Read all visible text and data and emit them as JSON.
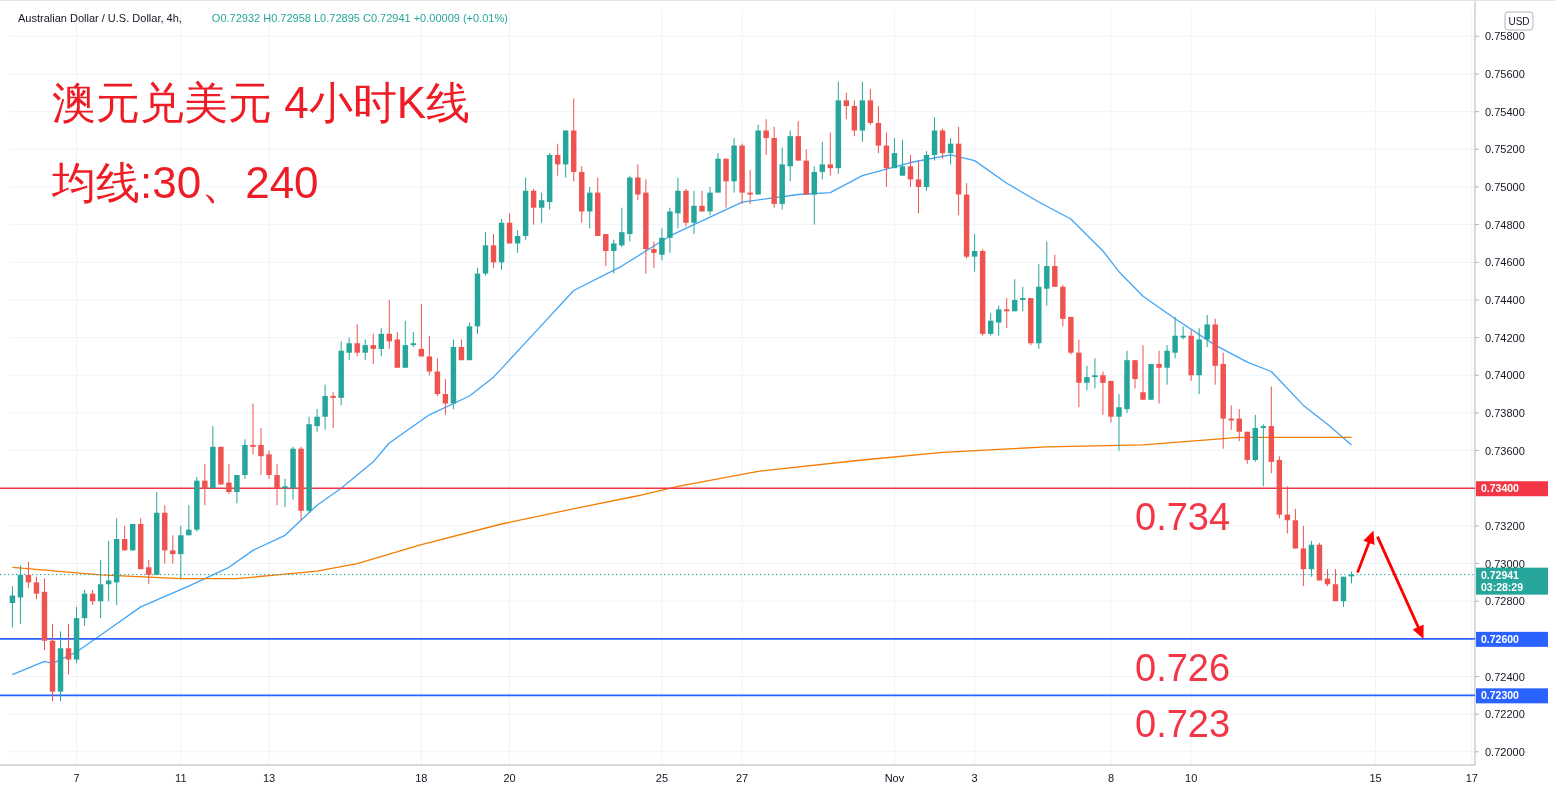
{
  "chart_data": {
    "type": "candlestick",
    "title": "澳元兑美元 4小时K线",
    "subtitle": "均线:30、240",
    "ylabel": "USD",
    "annotations": [
      "Australian Dollar / U.S. Dollar, 4h,",
      "O0.72932 H0.72958 L0.72895 C0.72941 +0.00009 (+0.01%)",
      {
        "text": "0.734",
        "y": 0.734
      },
      {
        "text": "0.726",
        "y": 0.726
      },
      {
        "text": "0.723",
        "y": 0.723
      }
    ],
    "categories": [
      null,
      null,
      null,
      null,
      null,
      null,
      null,
      null,
      "7",
      null,
      null,
      null,
      null,
      null,
      null,
      null,
      null,
      null,
      null,
      null,
      null,
      "11",
      null,
      null,
      null,
      null,
      null,
      null,
      null,
      null,
      null,
      null,
      "13",
      null,
      null,
      null,
      null,
      null,
      null,
      null,
      null,
      null,
      null,
      null,
      null,
      null,
      null,
      null,
      null,
      null,
      null,
      "18",
      null,
      null,
      null,
      null,
      null,
      null,
      null,
      null,
      null,
      null,
      "20",
      null,
      null,
      null,
      null,
      null,
      null,
      null,
      null,
      null,
      null,
      null,
      null,
      null,
      null,
      null,
      null,
      null,
      null,
      "25",
      null,
      null,
      null,
      null,
      null,
      null,
      null,
      null,
      null,
      "27",
      null,
      null,
      null,
      null,
      null,
      null,
      null,
      null,
      null,
      null,
      null,
      null,
      null,
      null,
      null,
      null,
      null,
      null,
      "Nov",
      null,
      null,
      null,
      null,
      null,
      null,
      null,
      null,
      null,
      "3",
      null,
      null,
      null,
      null,
      null,
      null,
      null,
      null,
      null,
      null,
      null,
      null,
      null,
      null,
      null,
      null,
      "8",
      null,
      null,
      null,
      null,
      null,
      null,
      null,
      null,
      null,
      "10",
      null,
      null,
      null,
      null,
      null,
      null,
      null,
      null,
      null,
      null,
      null,
      null,
      null,
      null,
      null,
      null,
      null,
      null,
      null,
      null,
      null,
      null,
      "15",
      null,
      null,
      null,
      null,
      null,
      null,
      null,
      null,
      null,
      null,
      null,
      "17"
    ],
    "ohlc": [
      [
        0.7279,
        0.7288,
        0.7266,
        0.7283
      ],
      [
        0.7282,
        0.7299,
        0.7268,
        0.7294
      ],
      [
        0.7294,
        0.7301,
        0.7287,
        0.729
      ],
      [
        0.729,
        0.7293,
        0.7281,
        0.7284
      ],
      [
        0.7285,
        0.7292,
        0.7254,
        0.7259
      ],
      [
        0.7259,
        0.7268,
        0.7227,
        0.7232
      ],
      [
        0.7232,
        0.7264,
        0.7227,
        0.7255
      ],
      [
        0.7255,
        0.7268,
        0.7241,
        0.7249
      ],
      [
        0.7249,
        0.7277,
        0.7247,
        0.7271
      ],
      [
        0.7271,
        0.7286,
        0.7267,
        0.7284
      ],
      [
        0.7284,
        0.7286,
        0.7278,
        0.728
      ],
      [
        0.728,
        0.7302,
        0.7271,
        0.7289
      ],
      [
        0.7289,
        0.7312,
        0.728,
        0.7291
      ],
      [
        0.729,
        0.7324,
        0.7278,
        0.7313
      ],
      [
        0.7313,
        0.732,
        0.7307,
        0.7307
      ],
      [
        0.7307,
        0.7321,
        0.7307,
        0.7321
      ],
      [
        0.7321,
        0.7324,
        0.7297,
        0.7297
      ],
      [
        0.7298,
        0.7302,
        0.7289,
        0.7294
      ],
      [
        0.7294,
        0.7338,
        0.7294,
        0.7327
      ],
      [
        0.7327,
        0.7331,
        0.73,
        0.7307
      ],
      [
        0.7307,
        0.7315,
        0.73,
        0.7305
      ],
      [
        0.7305,
        0.732,
        0.7292,
        0.7315
      ],
      [
        0.7315,
        0.7331,
        0.7315,
        0.7318
      ],
      [
        0.7318,
        0.7346,
        0.7317,
        0.7344
      ],
      [
        0.7344,
        0.7353,
        0.7331,
        0.734
      ],
      [
        0.734,
        0.7373,
        0.734,
        0.7362
      ],
      [
        0.7362,
        0.7362,
        0.7342,
        0.7342
      ],
      [
        0.7343,
        0.7353,
        0.7337,
        0.7338
      ],
      [
        0.7338,
        0.7347,
        0.7332,
        0.7347
      ],
      [
        0.7347,
        0.7366,
        0.7345,
        0.7363
      ],
      [
        0.7363,
        0.7385,
        0.7358,
        0.7362
      ],
      [
        0.7363,
        0.7372,
        0.7347,
        0.7357
      ],
      [
        0.7358,
        0.736,
        0.7345,
        0.7347
      ],
      [
        0.7347,
        0.7353,
        0.7331,
        0.734
      ],
      [
        0.734,
        0.7345,
        0.733,
        0.7341
      ],
      [
        0.734,
        0.7362,
        0.7334,
        0.7361
      ],
      [
        0.7361,
        0.7362,
        0.7323,
        0.7328
      ],
      [
        0.7328,
        0.7378,
        0.7327,
        0.7374
      ],
      [
        0.7373,
        0.7382,
        0.737,
        0.7378
      ],
      [
        0.7378,
        0.7395,
        0.7371,
        0.7389
      ],
      [
        0.7389,
        0.7391,
        0.7372,
        0.7388
      ],
      [
        0.7388,
        0.7418,
        0.7384,
        0.7413
      ],
      [
        0.7412,
        0.742,
        0.7408,
        0.7417
      ],
      [
        0.7417,
        0.7427,
        0.741,
        0.7412
      ],
      [
        0.7412,
        0.7419,
        0.7408,
        0.7416
      ],
      [
        0.7416,
        0.7422,
        0.7406,
        0.7414
      ],
      [
        0.7414,
        0.7425,
        0.741,
        0.7422
      ],
      [
        0.7422,
        0.744,
        0.7414,
        0.7418
      ],
      [
        0.7419,
        0.7423,
        0.7404,
        0.7404
      ],
      [
        0.7404,
        0.7429,
        0.7404,
        0.7416
      ],
      [
        0.7416,
        0.7423,
        0.7415,
        0.7417
      ],
      [
        0.7414,
        0.7438,
        0.741,
        0.741
      ],
      [
        0.741,
        0.7421,
        0.74,
        0.7402
      ],
      [
        0.7402,
        0.7409,
        0.7389,
        0.739
      ],
      [
        0.739,
        0.7398,
        0.7379,
        0.7385
      ],
      [
        0.7385,
        0.7419,
        0.7382,
        0.7415
      ],
      [
        0.7415,
        0.7419,
        0.7408,
        0.7408
      ],
      [
        0.7408,
        0.7428,
        0.7408,
        0.7426
      ],
      [
        0.7426,
        0.7457,
        0.7422,
        0.7454
      ],
      [
        0.7454,
        0.7476,
        0.7453,
        0.7469
      ],
      [
        0.7469,
        0.7475,
        0.7457,
        0.746
      ],
      [
        0.746,
        0.7483,
        0.7456,
        0.7481
      ],
      [
        0.7481,
        0.7486,
        0.747,
        0.747
      ],
      [
        0.747,
        0.7477,
        0.7465,
        0.7474
      ],
      [
        0.7474,
        0.7505,
        0.7472,
        0.7498
      ],
      [
        0.7498,
        0.7499,
        0.748,
        0.7489
      ],
      [
        0.7489,
        0.7497,
        0.7481,
        0.7493
      ],
      [
        0.7492,
        0.7518,
        0.7488,
        0.7517
      ],
      [
        0.7517,
        0.7523,
        0.7506,
        0.7512
      ],
      [
        0.7512,
        0.753,
        0.7505,
        0.753
      ],
      [
        0.753,
        0.7547,
        0.7503,
        0.7508
      ],
      [
        0.7508,
        0.7511,
        0.7481,
        0.7487
      ],
      [
        0.7487,
        0.75,
        0.7478,
        0.7497
      ],
      [
        0.7497,
        0.7505,
        0.7474,
        0.7474
      ],
      [
        0.7475,
        0.7475,
        0.7458,
        0.7466
      ],
      [
        0.7466,
        0.7472,
        0.7454,
        0.747
      ],
      [
        0.7469,
        0.7489,
        0.7468,
        0.7476
      ],
      [
        0.7475,
        0.7506,
        0.7471,
        0.7505
      ],
      [
        0.7505,
        0.7512,
        0.7493,
        0.7496
      ],
      [
        0.7497,
        0.7504,
        0.7454,
        0.7467
      ],
      [
        0.7467,
        0.7471,
        0.7457,
        0.7465
      ],
      [
        0.7464,
        0.7478,
        0.7461,
        0.7473
      ],
      [
        0.7473,
        0.7489,
        0.7465,
        0.7487
      ],
      [
        0.7486,
        0.7505,
        0.7478,
        0.7498
      ],
      [
        0.7498,
        0.7499,
        0.7479,
        0.7481
      ],
      [
        0.7481,
        0.7498,
        0.7475,
        0.749
      ],
      [
        0.749,
        0.7498,
        0.7487,
        0.7487
      ],
      [
        0.7487,
        0.75,
        0.7485,
        0.7497
      ],
      [
        0.7497,
        0.7518,
        0.7497,
        0.7515
      ],
      [
        0.7515,
        0.7515,
        0.7489,
        0.7503
      ],
      [
        0.7503,
        0.7526,
        0.7497,
        0.7522
      ],
      [
        0.7522,
        0.7523,
        0.7491,
        0.7497
      ],
      [
        0.7497,
        0.7509,
        0.7491,
        0.7496
      ],
      [
        0.7496,
        0.7533,
        0.7496,
        0.753
      ],
      [
        0.753,
        0.7536,
        0.7517,
        0.7526
      ],
      [
        0.7526,
        0.7532,
        0.7489,
        0.7491
      ],
      [
        0.7491,
        0.7521,
        0.7488,
        0.7512
      ],
      [
        0.7511,
        0.753,
        0.7503,
        0.7527
      ],
      [
        0.7527,
        0.7535,
        0.7514,
        0.7514
      ],
      [
        0.7514,
        0.752,
        0.7496,
        0.7496
      ],
      [
        0.7496,
        0.7511,
        0.748,
        0.7508
      ],
      [
        0.7508,
        0.7524,
        0.7504,
        0.7512
      ],
      [
        0.7512,
        0.7529,
        0.7506,
        0.751
      ],
      [
        0.751,
        0.7556,
        0.7507,
        0.7546
      ],
      [
        0.7546,
        0.755,
        0.7536,
        0.7543
      ],
      [
        0.7543,
        0.7546,
        0.7527,
        0.753
      ],
      [
        0.753,
        0.7556,
        0.7524,
        0.7546
      ],
      [
        0.7546,
        0.7552,
        0.7533,
        0.7534
      ],
      [
        0.7534,
        0.7543,
        0.7518,
        0.7522
      ],
      [
        0.7522,
        0.7529,
        0.75,
        0.751
      ],
      [
        0.751,
        0.7526,
        0.751,
        0.7518
      ],
      [
        0.7506,
        0.7525,
        0.7506,
        0.7511
      ],
      [
        0.7511,
        0.7517,
        0.75,
        0.7504
      ],
      [
        0.7504,
        0.7514,
        0.7486,
        0.75
      ],
      [
        0.75,
        0.7519,
        0.7498,
        0.7517
      ],
      [
        0.7517,
        0.7537,
        0.7514,
        0.753
      ],
      [
        0.753,
        0.7531,
        0.7515,
        0.7518
      ],
      [
        0.7518,
        0.7526,
        0.7512,
        0.7523
      ],
      [
        0.7523,
        0.7532,
        0.7485,
        0.7496
      ],
      [
        0.7496,
        0.7502,
        0.7462,
        0.7463
      ],
      [
        0.7463,
        0.7475,
        0.7455,
        0.7466
      ],
      [
        0.7466,
        0.7467,
        0.7421,
        0.7422
      ],
      [
        0.7422,
        0.7433,
        0.7421,
        0.7429
      ],
      [
        0.7428,
        0.7437,
        0.7421,
        0.7435
      ],
      [
        0.7435,
        0.7441,
        0.7425,
        0.7434
      ],
      [
        0.7434,
        0.7451,
        0.7434,
        0.744
      ],
      [
        0.744,
        0.7447,
        0.7434,
        0.7441
      ],
      [
        0.7441,
        0.7441,
        0.7416,
        0.7417
      ],
      [
        0.7417,
        0.7459,
        0.7414,
        0.7447
      ],
      [
        0.7446,
        0.7471,
        0.7437,
        0.7458
      ],
      [
        0.7458,
        0.7464,
        0.7447,
        0.7447
      ],
      [
        0.7447,
        0.7448,
        0.7426,
        0.743
      ],
      [
        0.7431,
        0.7431,
        0.7411,
        0.7412
      ],
      [
        0.7412,
        0.7419,
        0.7383,
        0.7396
      ],
      [
        0.7396,
        0.7405,
        0.7392,
        0.7399
      ],
      [
        0.7399,
        0.7409,
        0.7393,
        0.74
      ],
      [
        0.74,
        0.7402,
        0.7379,
        0.7396
      ],
      [
        0.7397,
        0.7397,
        0.7375,
        0.7378
      ],
      [
        0.7378,
        0.739,
        0.736,
        0.7383
      ],
      [
        0.7382,
        0.7413,
        0.738,
        0.7408
      ],
      [
        0.7408,
        0.7408,
        0.7393,
        0.7398
      ],
      [
        0.7391,
        0.7416,
        0.7387,
        0.7387
      ],
      [
        0.7387,
        0.7406,
        0.7387,
        0.7406
      ],
      [
        0.7406,
        0.7413,
        0.7385,
        0.7404
      ],
      [
        0.7404,
        0.7416,
        0.7395,
        0.7413
      ],
      [
        0.7412,
        0.7431,
        0.7409,
        0.7421
      ],
      [
        0.742,
        0.7426,
        0.7419,
        0.7421
      ],
      [
        0.7421,
        0.7424,
        0.7397,
        0.74
      ],
      [
        0.74,
        0.7425,
        0.739,
        0.7419
      ],
      [
        0.7419,
        0.7432,
        0.7415,
        0.7427
      ],
      [
        0.7427,
        0.743,
        0.7395,
        0.7405
      ],
      [
        0.7406,
        0.7412,
        0.7361,
        0.7377
      ],
      [
        0.7377,
        0.7384,
        0.7371,
        0.7376
      ],
      [
        0.7377,
        0.7382,
        0.7365,
        0.737
      ],
      [
        0.737,
        0.737,
        0.7353,
        0.7355
      ],
      [
        0.7355,
        0.7379,
        0.7354,
        0.7372
      ],
      [
        0.7372,
        0.7374,
        0.7341,
        0.7373
      ],
      [
        0.7373,
        0.7394,
        0.7348,
        0.7354
      ],
      [
        0.7355,
        0.7357,
        0.7324,
        0.7326
      ],
      [
        0.7326,
        0.7341,
        0.7316,
        0.7323
      ],
      [
        0.7323,
        0.7329,
        0.7308,
        0.7308
      ],
      [
        0.7308,
        0.732,
        0.7288,
        0.7297
      ],
      [
        0.7297,
        0.7312,
        0.7293,
        0.731
      ],
      [
        0.731,
        0.7311,
        0.7291,
        0.7291
      ],
      [
        0.7292,
        0.7297,
        0.7288,
        0.7289
      ],
      [
        0.7289,
        0.7297,
        0.728,
        0.728
      ],
      [
        0.728,
        0.7293,
        0.7277,
        0.7293
      ],
      [
        0.72932,
        0.72958,
        0.72895,
        0.72941
      ],
      null,
      null,
      null,
      null,
      null,
      null,
      null,
      null,
      null,
      null,
      null,
      null,
      null,
      null,
      null
    ],
    "series": [
      {
        "type": "line",
        "color": "#42a5f5",
        "values": [
          0.7241,
          null,
          null,
          null,
          0.7248,
          0.7247,
          null,
          null,
          0.7253,
          null,
          null,
          null,
          0.7265,
          null,
          null,
          null,
          0.7277,
          null,
          null,
          null,
          null,
          null,
          0.7288,
          null,
          null,
          null,
          null,
          0.7298,
          null,
          null,
          0.7307,
          null,
          null,
          null,
          0.7315,
          null,
          null,
          null,
          0.7331,
          null,
          null,
          0.734,
          null,
          null,
          null,
          0.7354,
          null,
          0.7364,
          null,
          null,
          null,
          null,
          0.7379,
          null,
          null,
          null,
          null,
          0.7389,
          null,
          null,
          0.7399,
          null,
          null,
          null,
          null,
          0.7422,
          null,
          null,
          null,
          null,
          0.7445,
          null,
          null,
          null,
          null,
          null,
          0.7458,
          null,
          null,
          null,
          null,
          null,
          0.7474,
          null,
          null,
          null,
          null,
          0.7484,
          null,
          null,
          null,
          0.7492,
          null,
          null,
          null,
          null,
          null,
          null,
          0.7496,
          null,
          null,
          null,
          0.7497,
          null,
          null,
          null,
          0.7506,
          null,
          null,
          null,
          null,
          null,
          0.7513,
          null,
          null,
          null,
          null,
          0.7517,
          null,
          null,
          0.7514,
          null,
          null,
          null,
          0.7502,
          null,
          null,
          null,
          0.7492,
          null,
          null,
          null,
          0.7483,
          null,
          null,
          null,
          0.7466,
          null,
          0.7455,
          null,
          null,
          0.7442,
          null,
          null,
          null,
          0.743,
          null,
          null,
          null,
          null,
          0.7416,
          null,
          null,
          null,
          0.7407,
          null,
          null,
          0.7402,
          null,
          null,
          null,
          0.7384,
          null,
          null,
          0.7374,
          null,
          null,
          0.7363,
          null,
          null,
          null,
          null,
          null,
          null,
          null,
          null,
          null,
          null,
          null,
          null,
          null,
          null,
          null
        ]
      },
      {
        "type": "line",
        "color": "#f57c00",
        "values": [
          0.7298,
          null,
          null,
          null,
          null,
          null,
          null,
          null,
          null,
          null,
          null,
          0.7294,
          null,
          null,
          null,
          null,
          null,
          null,
          null,
          null,
          null,
          0.7292,
          null,
          null,
          null,
          null,
          null,
          null,
          0.7292,
          null,
          null,
          null,
          null,
          0.7294,
          null,
          null,
          null,
          null,
          0.7296,
          null,
          null,
          null,
          null,
          0.73,
          null,
          null,
          null,
          null,
          null,
          null,
          null,
          0.731,
          null,
          null,
          null,
          null,
          null,
          null,
          null,
          null,
          null,
          0.7321,
          null,
          null,
          null,
          null,
          null,
          null,
          null,
          null,
          null,
          0.733,
          null,
          null,
          null,
          null,
          null,
          null,
          0.7336,
          null,
          null,
          null,
          null,
          0.7341,
          null,
          null,
          null,
          null,
          null,
          null,
          null,
          null,
          null,
          0.7349,
          null,
          null,
          null,
          null,
          null,
          null,
          null,
          null,
          null,
          null,
          null,
          null,
          0.7355,
          null,
          null,
          null,
          null,
          null,
          null,
          null,
          null,
          null,
          0.7359,
          null,
          null,
          null,
          null,
          null,
          null,
          null,
          null,
          null,
          null,
          null,
          null,
          0.7362,
          null,
          null,
          null,
          null,
          null,
          null,
          null,
          null,
          null,
          null,
          null,
          0.7363,
          null,
          null,
          null,
          null,
          null,
          null,
          null,
          null,
          null,
          null,
          null,
          0.7367,
          null,
          null,
          null,
          null,
          null,
          null,
          null,
          null,
          null,
          null,
          null,
          null,
          null,
          0.7367,
          null,
          null,
          null,
          null,
          null,
          null,
          null,
          null,
          null,
          null,
          null,
          null,
          null,
          null,
          null
        ]
      }
    ],
    "ylim": [
      0.7193,
      0.7594
    ],
    "yticks": [
      {
        "value": 0.72,
        "label": "0.72000"
      },
      {
        "value": 0.722,
        "label": "0.72200"
      },
      {
        "value": 0.724,
        "label": "0.72400"
      },
      {
        "value": 0.726,
        "label": null
      },
      {
        "value": 0.728,
        "label": "0.72800"
      },
      {
        "value": 0.73,
        "label": "0.73000"
      },
      {
        "value": 0.732,
        "label": "0.73200"
      },
      {
        "value": 0.734,
        "label": null
      },
      {
        "value": 0.736,
        "label": "0.73600"
      },
      {
        "value": 0.738,
        "label": "0.73800"
      },
      {
        "value": 0.74,
        "label": "0.74000"
      },
      {
        "value": 0.742,
        "label": "0.74200"
      },
      {
        "value": 0.744,
        "label": "0.74400"
      },
      {
        "value": 0.746,
        "label": "0.74600"
      },
      {
        "value": 0.748,
        "label": "0.74800"
      },
      {
        "value": 0.75,
        "label": "0.75000"
      },
      {
        "value": 0.752,
        "label": "0.75200"
      },
      {
        "value": 0.754,
        "label": "0.75400"
      },
      {
        "value": 0.756,
        "label": "0.75600"
      },
      {
        "value": 0.758,
        "label": "0.75800"
      }
    ],
    "ref_lines": [
      {
        "axis": "y",
        "value": 0.734,
        "label": "0.73400",
        "color": "#f23645"
      },
      {
        "axis": "y",
        "value": 0.726,
        "label": "0.72600",
        "color": "#2962ff"
      },
      {
        "axis": "y",
        "value": 0.723,
        "label": "0.72300",
        "color": "#2962ff"
      },
      {
        "axis": "y",
        "value": 0.72941,
        "label": "0.72941\n03:28:29",
        "color": "#26a69a",
        "line_style": "dotted"
      }
    ],
    "grid": true
  }
}
